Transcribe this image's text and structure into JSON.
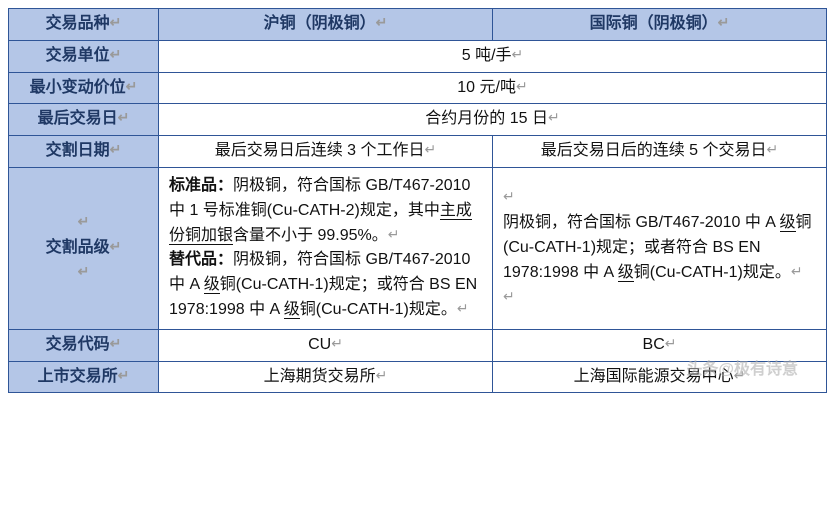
{
  "table": {
    "col_widths": [
      "150px",
      "334px",
      "334px"
    ],
    "border_color": "#2f5597",
    "header_bg": "#b4c6e7",
    "header_fg": "#1f3864",
    "font_size": 16,
    "return_glyph": "↵",
    "header_row": {
      "label": "交易品种",
      "col1": "沪铜（阴极铜）",
      "col2": "国际铜（阴极铜）"
    },
    "rows": {
      "unit": {
        "label": "交易单位",
        "merged": "5 吨/手"
      },
      "tick": {
        "label": "最小变动价位",
        "merged": "10 元/吨"
      },
      "lastday": {
        "label": "最后交易日",
        "merged": "合约月份的 15 日"
      },
      "delivdate": {
        "label": "交割日期",
        "col1": "最后交易日后连续 3 个工作日",
        "col2": "最后交易日后的连续 5 个交易日"
      },
      "grade": {
        "label": "交割品级",
        "col1_html": "<b>标准品：</b>阴极铜，符合国标 GB/T467-2010 中 1 号标准铜(Cu-CATH-2)规定，其中<span class=\"ud\">主成份铜加银</span>含量不小于 99.95%。<span class=\"ret\">↵</span><br><b>替代品：</b>阴极铜，符合国标 GB/T467-2010 中 A <span class=\"ud\">级</span>铜(Cu-CATH-1)规定；或符合 BS EN 1978:1998 中 A <span class=\"ud\">级</span>铜(Cu-CATH-1)规定。<span class=\"ret\">↵</span>",
        "col2_html": "<span class=\"ret\">↵</span><br>阴极铜，符合国标 GB/T467-2010 中 A <span class=\"ud\">级</span>铜(Cu-CATH-1)规定；或者符合 BS EN 1978:1998 中 A <span class=\"ud\">级</span>铜(Cu-CATH-1)规定。<span class=\"ret\">↵</span><br><span class=\"ret\">↵</span>"
      },
      "code": {
        "label": "交易代码",
        "col1": "CU",
        "col2": "BC"
      },
      "exchange": {
        "label": "上市交易所",
        "col1": "上海期货交易所",
        "col2": "上海国际能源交易中心"
      }
    }
  },
  "watermark": "头条@极有诗意"
}
